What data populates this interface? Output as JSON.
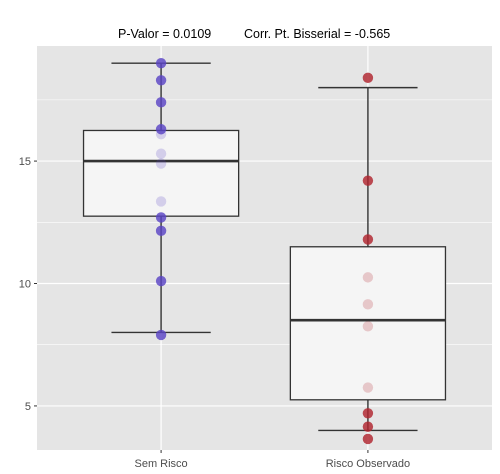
{
  "chart_data": {
    "type": "boxplot",
    "title_pvalue": "P-Valor =  0.0109",
    "title_corr": "Corr. Pt. Bisserial =  -0.565",
    "xlabel": "",
    "ylabel": "",
    "categories": [
      "Sem Risco",
      "Risco Observado"
    ],
    "ylim": [
      3.2,
      19.7
    ],
    "y_ticks": [
      5,
      10,
      15
    ],
    "y_tick_labels": [
      "5",
      "10",
      "15"
    ],
    "grid": true,
    "legend": "none",
    "colors": {
      "panel_bg": "#e5e5e5",
      "grid": "#ffffff",
      "box_fill": "#f5f5f5",
      "box_stroke": "#333333",
      "sem_risco_points": "#5a44c4",
      "risco_observado_points": "#b0242e"
    },
    "groups": [
      {
        "name": "Sem Risco",
        "whisker_low": 8.0,
        "q1": 12.75,
        "median": 15.0,
        "q3": 16.25,
        "whisker_high": 19.0,
        "points": [
          19.0,
          18.3,
          17.4,
          16.3,
          16.1,
          15.3,
          14.9,
          13.35,
          12.7,
          12.15,
          10.1,
          7.9
        ]
      },
      {
        "name": "Risco Observado",
        "whisker_low": 4.0,
        "q1": 5.25,
        "median": 8.5,
        "q3": 11.5,
        "whisker_high": 18.0,
        "points": [
          18.4,
          14.2,
          11.8,
          10.25,
          9.15,
          8.25,
          5.75,
          4.7,
          4.15,
          3.65
        ]
      }
    ]
  }
}
